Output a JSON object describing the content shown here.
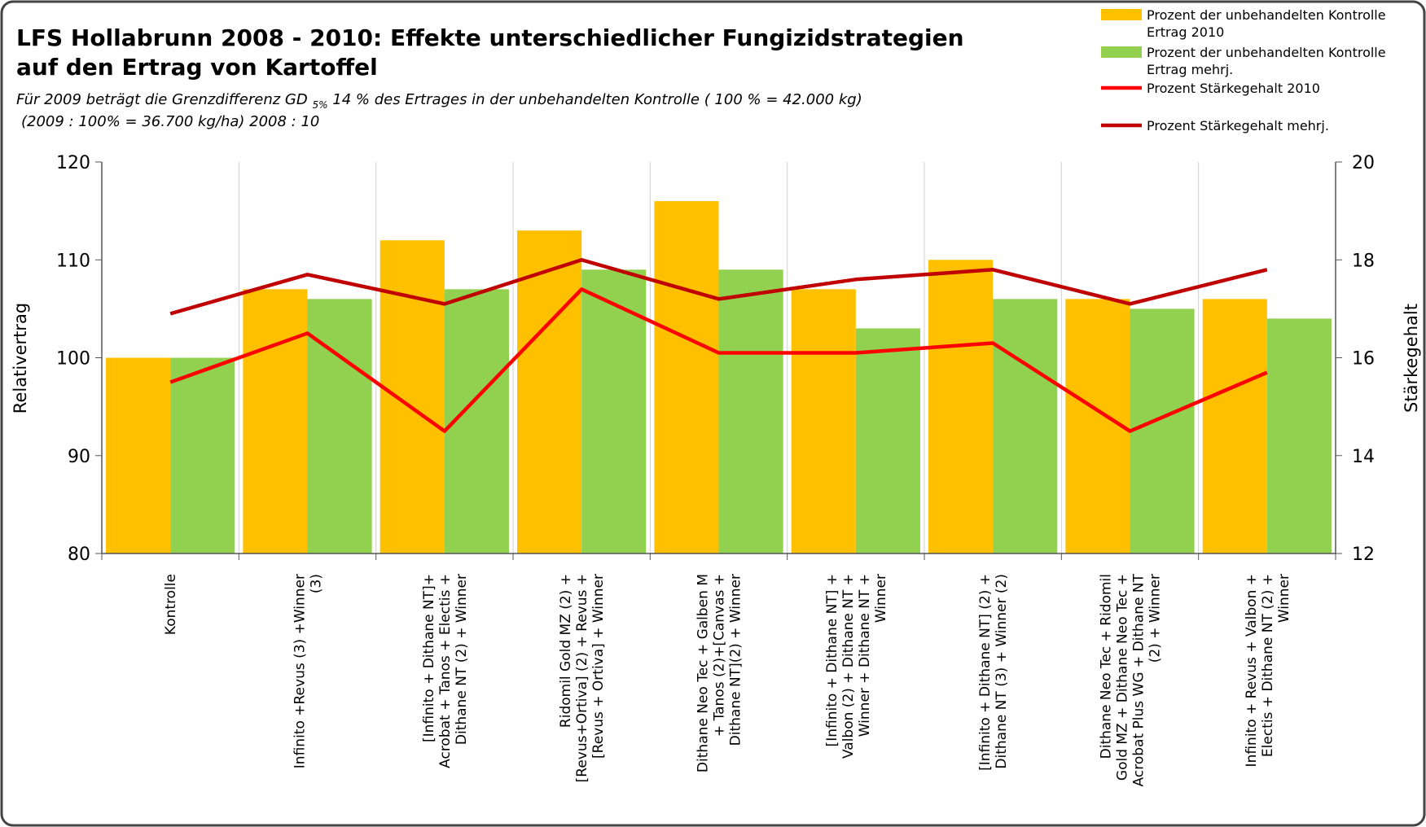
{
  "chart_data": {
    "type": "bar_line",
    "title": [
      "LFS Hollabrunn 2008 - 2010: Effekte unterschiedlicher Fungizidstrategien",
      "auf den Ertrag  von Kartoffel"
    ],
    "subtitle": {
      "before": "Für 2009 beträgt die Grenzdifferenz  GD",
      "sub": "5%",
      "after": "14 % des Ertrages in der unbehandelten Kontrolle ( 100 % = 42.000 kg)",
      "line2": "(2009 : 100% = 36.700 kg/ha) 2008 : 10"
    },
    "y_label": "Relativertrag",
    "y2_label": "Stärkegehalt",
    "categories": [
      "Kontrolle",
      "Infinito +Revus (3) +Winner\n(3)",
      "[Infinito + Dithane NT]+\nAcrobat + Tanos + Electis +\nDithane NT (2) + Winner",
      "Ridomil Gold MZ (2) +\n[Revus+Ortiva] (2) + Revus +\n[Revus + Ortiva] + Winner",
      "Dithane Neo Tec + Galben M\n+ Tanos (2)+[Canvas +\nDithane NT](2) + Winner",
      "[Infinito + Dithane NT] +\nValbon (2) + Dithane NT +\nWinner + Dithane NT +\nWinner",
      "[Infinito + Dithane NT] (2) +\nDithane NT (3) + Winner (2)",
      "Dithane Neo Tec + Ridomil\nGold MZ + Dithane Neo Tec +\nAcrobat Plus WG + Dithane NT\n(2) + Winner",
      "Infinito + Revus + Valbon +\nElectis + Dithane NT (2) +\nWinner"
    ],
    "series": [
      {
        "name": "Prozent der unbehandelten Kontrolle\nErtrag 2010",
        "type": "bar",
        "color": "#ffc000",
        "values": [
          100,
          107,
          112,
          113,
          116,
          107,
          110,
          106,
          106
        ]
      },
      {
        "name": "Prozent der unbehandelten Kontrolle\nErtrag mehrj.",
        "type": "bar",
        "color": "#92d050",
        "values": [
          100,
          106,
          107,
          109,
          109,
          103,
          106,
          105,
          104
        ]
      },
      {
        "name": "Prozent Stärkegehalt 2010",
        "type": "line",
        "axis": "y2",
        "color": "#ff0000",
        "values": [
          15.5,
          16.5,
          14.5,
          17.4,
          16.1,
          16.1,
          16.3,
          14.5,
          15.7
        ]
      },
      {
        "name": "Prozent Stärkegehalt mehrj.",
        "type": "line",
        "axis": "y2",
        "color": "#c00000",
        "values": [
          16.9,
          17.7,
          17.1,
          18.0,
          17.2,
          17.6,
          17.8,
          17.1,
          17.8
        ]
      }
    ],
    "ylim": [
      80,
      120
    ],
    "yticks": [
      80,
      90,
      100,
      110,
      120
    ],
    "y2lim": [
      12,
      20
    ],
    "y2ticks": [
      12,
      14,
      16,
      18,
      20
    ],
    "legend": "top-right"
  }
}
